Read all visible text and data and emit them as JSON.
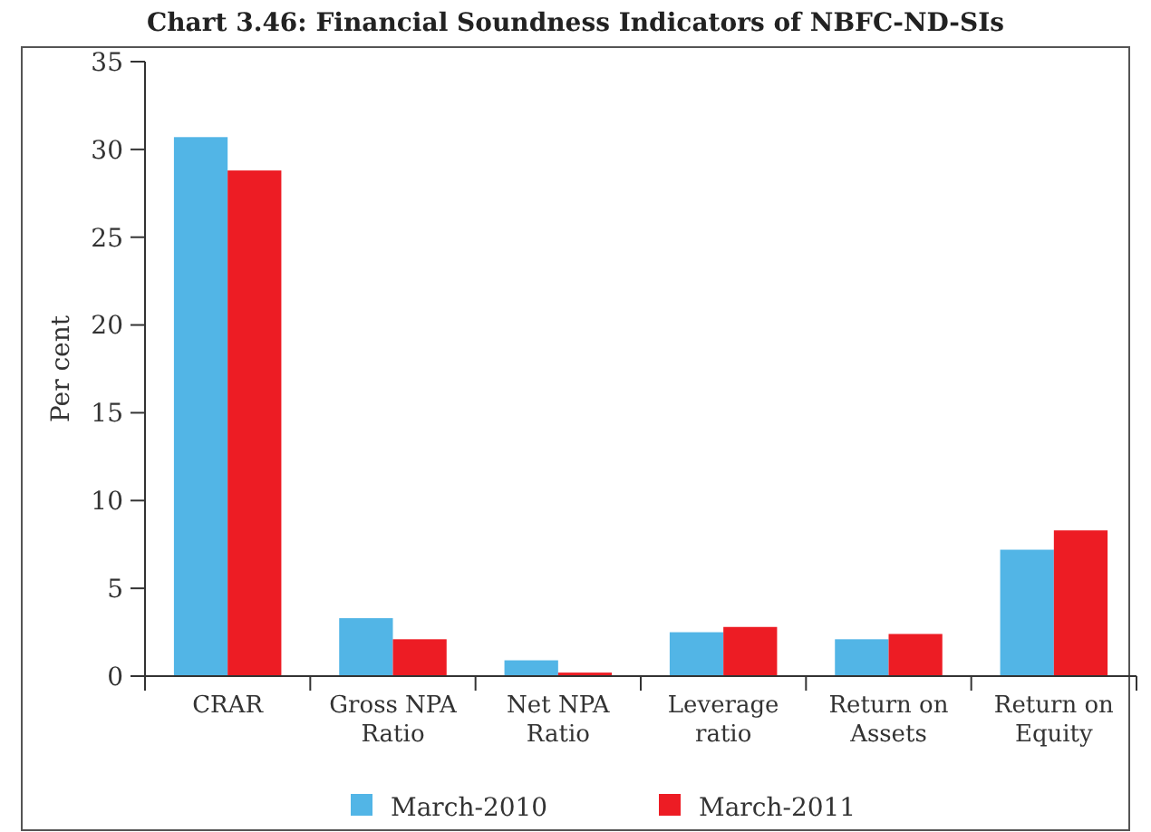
{
  "chart_data": {
    "type": "bar",
    "title": "Chart 3.46: Financial Soundness Indicators of NBFC-ND-SIs",
    "ylabel": "Per cent",
    "categories": [
      "CRAR",
      "Gross NPA Ratio",
      "Net NPA Ratio",
      "Leverage ratio",
      "Return on Assets",
      "Return on Equity"
    ],
    "series": [
      {
        "name": "March-2010",
        "color": "#52b5e6",
        "values": [
          30.7,
          3.3,
          0.9,
          2.5,
          2.1,
          7.2
        ]
      },
      {
        "name": "March-2011",
        "color": "#ed1c24",
        "values": [
          28.8,
          2.1,
          0.2,
          2.8,
          2.4,
          8.3
        ]
      }
    ],
    "ylim": [
      0,
      35
    ],
    "yticks": [
      0,
      5,
      10,
      15,
      20,
      25,
      30,
      35
    ],
    "grid": false,
    "legend": "bottom"
  }
}
